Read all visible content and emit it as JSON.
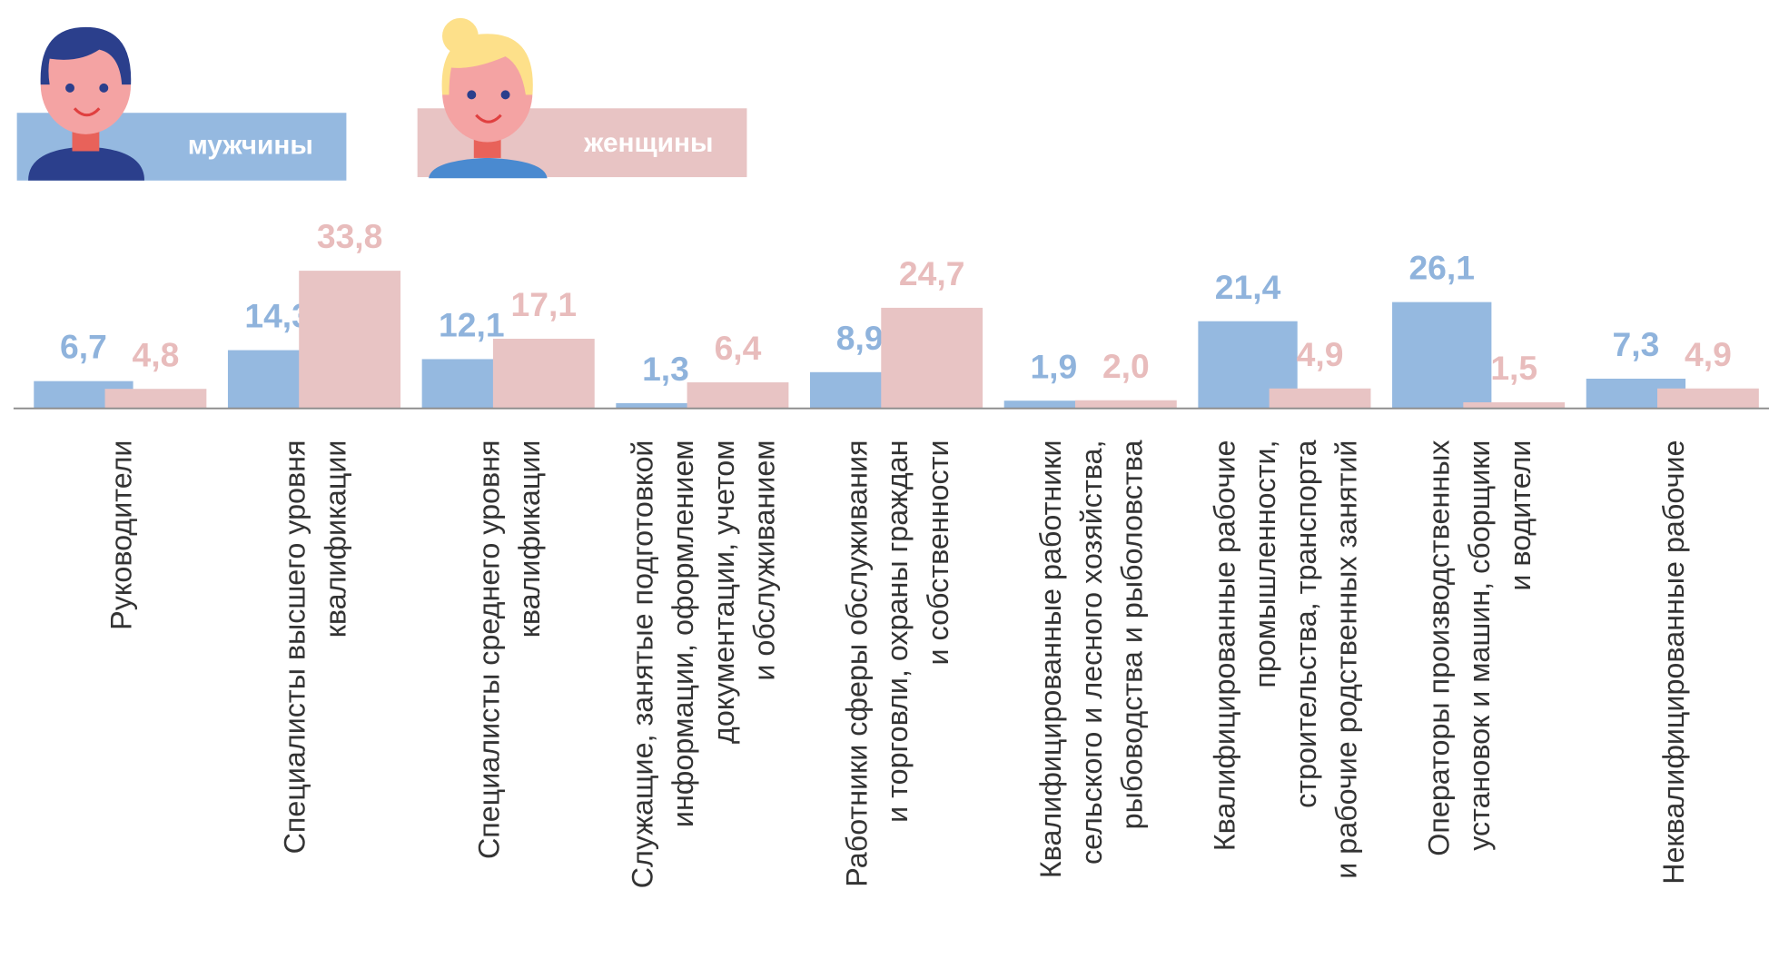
{
  "chart_data": {
    "type": "bar",
    "categories": [
      "Руководители",
      "Специалисты высшего уровня\nквалификации",
      "Специалисты среднего уровня\nквалификации",
      "Служащие,  занятые подготовкой\nинформации, оформлением\nдокументации, учетом\nи обслуживанием",
      "Работники сферы обслуживания\nи торговли, охраны граждан\nи собственности",
      "Квалифицированные работники\nсельского и лесного хозяйства,\nрыбоводства и рыболовства",
      "Квалифицированные рабочие\nпромышленности,\nстроительства, транспорта\nи рабочие родственных занятий",
      "Операторы производственных\nустановок и машин, сборщики\nи водители",
      "Неквалифицированные рабочие"
    ],
    "series": [
      {
        "name": "мужчины",
        "color": "#95b9e0",
        "label_color": "#8fb3dc",
        "values": [
          6.7,
          14.3,
          12.1,
          1.3,
          8.9,
          1.9,
          21.4,
          26.1,
          7.3
        ],
        "value_labels": [
          "6,7",
          "14,3",
          "12,1",
          "1,3",
          "8,9",
          "1,9",
          "21,4",
          "26,1",
          "7,3"
        ]
      },
      {
        "name": "женщины",
        "color": "#e8c4c4",
        "label_color": "#e8bcbc",
        "values": [
          4.8,
          33.8,
          17.1,
          6.4,
          24.7,
          2.0,
          4.9,
          1.5,
          4.9
        ],
        "value_labels": [
          "4,8",
          "33,8",
          "17,1",
          "6,4",
          "24,7",
          "2,0",
          "4,9",
          "1,5",
          "4,9"
        ]
      }
    ],
    "ylim": [
      0,
      36
    ]
  }
}
